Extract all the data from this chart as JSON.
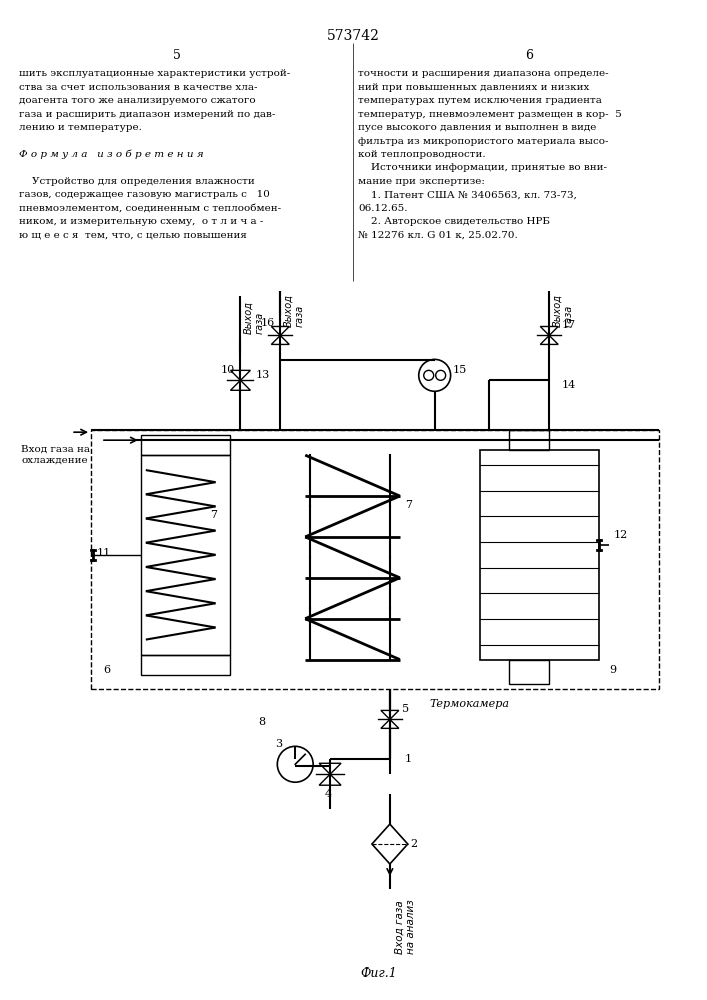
{
  "title": "573742",
  "page_left": "5",
  "page_right": "6",
  "background_color": "#ffffff",
  "text_color": "#000000",
  "line_color": "#000000",
  "fig_label": "Фиг.1",
  "termokamera_label": "Термокамера",
  "vhod_gaza_label": "Вход газа на\nохлаждение",
  "vhod_analiz_label": "Вход газа\nна анализ",
  "vyhod_gaz_left1": "Выход\nгаза",
  "vyhod_gaz_left2": "Выход\nгаза",
  "vyhod_gaz_right": "Выход\nгаза",
  "col_left_text": [
    "шить эксплуатационные характеристики устрой-",
    "ства за счет использования в качестве хла-",
    "доагента того же анализируемого сжатого",
    "газа и расширить диапазон измерений по дав-",
    "лению и температуре.",
    "",
    "Ф о р м у л а   и з о б р е т е н и я",
    "",
    "    Устройство для определения влажности",
    "газов, содержащее газовую магистраль с   10",
    "пневмоэлементом, соединенным с теплообмен-",
    "ником, и измерительную схему,  о т л и ч а -",
    "ю щ е е с я  тем, что, с целью повышения"
  ],
  "col_right_text": [
    "точности и расширения диапазона определе-",
    "ний при повышенных давлениях и низких",
    "температурах путем исключения градиента",
    "температур, пневмоэлемент размещен в кор-  5",
    "пусе высокого давления и выполнен в виде",
    "фильтра из микропористого материала высо-",
    "кой теплопроводности.",
    "    Источники информации, принятые во вни-",
    "мание при экспертизе:",
    "    1. Патент США № 3406563, кл. 73-73,",
    "06.12.65.",
    "    2. Авторское свидетельство НРБ",
    "№ 12276 кл. G 01 к, 25.02.70."
  ]
}
